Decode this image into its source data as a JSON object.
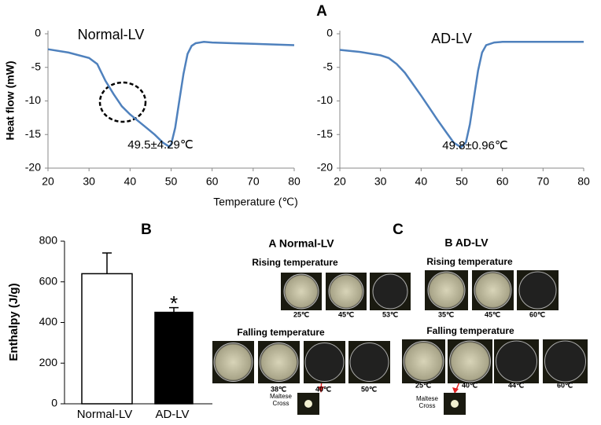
{
  "chart_data": [
    {
      "type": "line",
      "panel": "A",
      "title": "Normal-LV",
      "annotation": "49.5±4.29℃",
      "ylabel": "Heat flow (mW)",
      "xlabel": "Temperature (℃)",
      "x": [
        20,
        25,
        30,
        32,
        34,
        36,
        38,
        40,
        42,
        44,
        46,
        48,
        49.5,
        50,
        51,
        52,
        53,
        54,
        55,
        56,
        58,
        60,
        65,
        70,
        80
      ],
      "series": [
        {
          "name": "Normal-LV",
          "color": "#4f81bd",
          "values": [
            -2.3,
            -2.8,
            -3.6,
            -4.5,
            -7,
            -9,
            -10.8,
            -12,
            -13,
            -14,
            -15,
            -16.2,
            -16.8,
            -16.5,
            -14,
            -10,
            -6,
            -3,
            -1.8,
            -1.4,
            -1.2,
            -1.3,
            -1.4,
            -1.5,
            -1.7
          ]
        }
      ],
      "xlim": [
        20,
        80
      ],
      "xticks": [
        20,
        30,
        40,
        50,
        60,
        70,
        80
      ],
      "ylim": [
        -20,
        0
      ],
      "yticks": [
        0,
        -5,
        -10,
        -15,
        -20
      ]
    },
    {
      "type": "line",
      "title": "AD-LV",
      "annotation": "49.8±0.96℃",
      "x": [
        20,
        25,
        30,
        32,
        34,
        36,
        38,
        40,
        42,
        44,
        46,
        48,
        49.8,
        51,
        52,
        53,
        54,
        55,
        56,
        58,
        60,
        70,
        80
      ],
      "series": [
        {
          "name": "AD-LV",
          "color": "#4f81bd",
          "values": [
            -2.4,
            -2.7,
            -3.2,
            -3.6,
            -4.5,
            -5.8,
            -7.5,
            -9.2,
            -11,
            -12.8,
            -14.5,
            -16.2,
            -16.9,
            -16.2,
            -13.5,
            -9.5,
            -5.5,
            -2.8,
            -1.7,
            -1.3,
            -1.2,
            -1.2,
            -1.2
          ]
        }
      ],
      "xlim": [
        20,
        80
      ],
      "xticks": [
        20,
        30,
        40,
        50,
        60,
        70,
        80
      ],
      "ylim": [
        -20,
        0
      ],
      "yticks": [
        0,
        -5,
        -10,
        -15,
        -20
      ]
    },
    {
      "type": "bar",
      "panel": "B",
      "ylabel": "Enthalpy (J/g)",
      "categories": [
        "Normal-LV",
        "AD-LV"
      ],
      "values": [
        640,
        450
      ],
      "errors": [
        102,
        23
      ],
      "colors": [
        "#ffffff",
        "#000000"
      ],
      "significance": "*",
      "ylim": [
        0,
        800
      ],
      "yticks": [
        0,
        200,
        400,
        600,
        800
      ]
    }
  ],
  "micrographs": {
    "panel": "C",
    "groups": [
      {
        "title": "A Normal-LV",
        "rising": {
          "title": "Rising temperature",
          "labels": [
            "25℃",
            "45℃",
            "53℃"
          ]
        },
        "falling": {
          "title": "Falling temperature",
          "labels": [
            "38℃",
            "40℃",
            "50℃"
          ]
        },
        "inset": "Maltese Cross"
      },
      {
        "title": "B AD-LV",
        "rising": {
          "title": "Rising temperature",
          "labels": [
            "35℃",
            "45℃",
            "60℃"
          ]
        },
        "falling": {
          "title": "Falling temperature",
          "labels": [
            "25℃",
            "40℃",
            "44℃",
            "60℃"
          ]
        },
        "inset": "Maltese Cross"
      }
    ]
  }
}
